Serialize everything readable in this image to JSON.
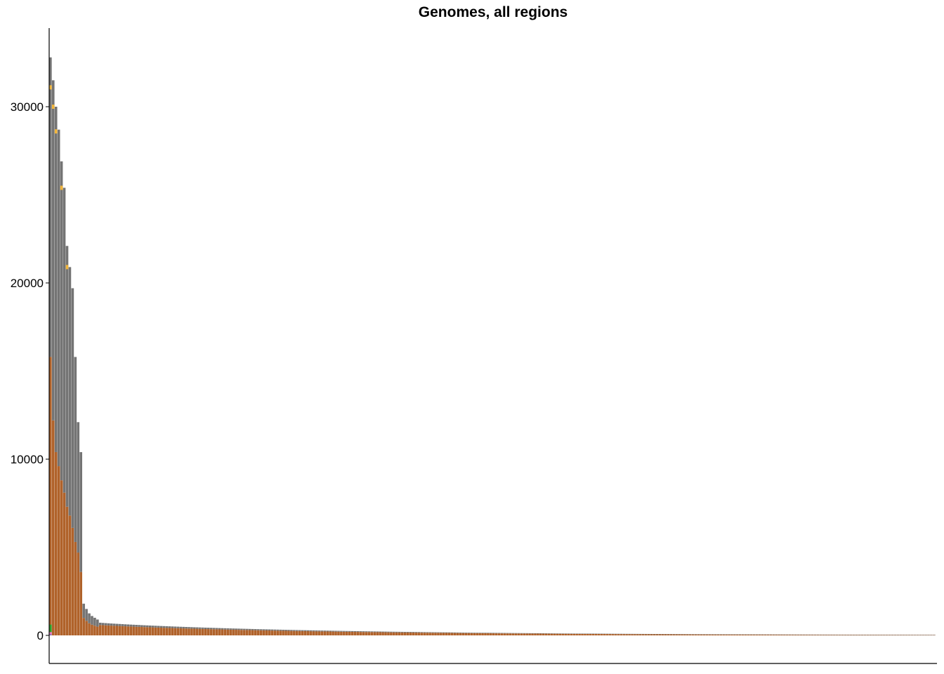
{
  "chart_data": {
    "type": "bar",
    "title": "Genomes, all regions",
    "xlabel": "",
    "ylabel": "",
    "ylim": [
      -1600,
      34500
    ],
    "yticks": [
      0,
      10000,
      20000,
      30000
    ],
    "ytick_labels": [
      "0",
      "10000",
      "20000",
      "30000"
    ],
    "x_tick_labels": "none",
    "grid": false,
    "legend": "none",
    "stacked": true,
    "n_categories": 320,
    "series_colors": {
      "brown": "#b0622a",
      "gray": "#747474",
      "orange": "#f0b43a",
      "green": "#2ca02c",
      "pink": "#e377c2",
      "purple": "#8c6bb1"
    },
    "head": {
      "totals": [
        32800,
        31500,
        30000,
        28700,
        26900,
        25400,
        22100,
        20900,
        19700,
        15800,
        12100,
        10400
      ],
      "brown": [
        15800,
        12200,
        10400,
        9600,
        8800,
        8100,
        7300,
        6800,
        6100,
        5300,
        4700,
        3600
      ],
      "orange": [
        31100,
        30000,
        28600,
        0,
        25400,
        0,
        20900,
        0,
        0,
        0,
        0,
        0
      ],
      "green": 420,
      "pink": 130,
      "purple": 60
    },
    "second_tier": {
      "totals": [
        1800,
        1500,
        1250,
        1100,
        1000,
        900
      ],
      "brown_fraction": 0.55
    },
    "tail": {
      "start_value": 720,
      "end_value": 30,
      "brown_fraction": 0.82,
      "decay": "roughly exponential"
    }
  }
}
